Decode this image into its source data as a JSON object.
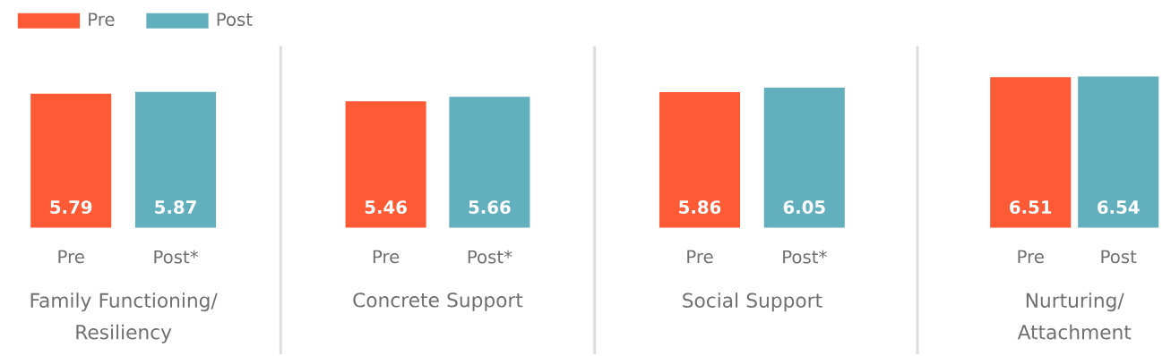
{
  "chart_data": [
    {
      "type": "bar",
      "categories": [
        "Pre",
        "Post*"
      ],
      "xlabel": "Family Functioning/ Resiliency",
      "tick_labels": "x",
      "data_labels": true,
      "legend": "top",
      "series": [
        {
          "name": "Pre",
          "color": "#ff5a36",
          "values": [
            5.79,
            null
          ]
        },
        {
          "name": "Post",
          "color": "#62b0bd",
          "values": [
            null,
            5.87
          ]
        }
      ]
    },
    {
      "type": "bar",
      "categories": [
        "Pre",
        "Post*"
      ],
      "xlabel": "Concrete Support",
      "tick_labels": "x",
      "data_labels": true,
      "series": [
        {
          "color": "#ff5a36",
          "values": [
            5.46,
            null
          ]
        },
        {
          "color": "#62b0bd",
          "values": [
            null,
            5.66
          ]
        }
      ]
    },
    {
      "type": "bar",
      "categories": [
        "Pre",
        "Post*"
      ],
      "xlabel": "Social Support",
      "tick_labels": "x",
      "data_labels": true,
      "series": [
        {
          "color": "#ff5a36",
          "values": [
            5.86,
            null
          ]
        },
        {
          "color": "#62b0bd",
          "values": [
            null,
            6.05
          ]
        }
      ]
    },
    {
      "type": "bar",
      "categories": [
        "Pre",
        "Post"
      ],
      "xlabel": "Nurturing/ Attachment",
      "tick_labels": "x",
      "data_labels": true,
      "series": [
        {
          "color": "#ff5a36",
          "values": [
            6.51,
            null
          ]
        },
        {
          "color": "#62b0bd",
          "values": [
            null,
            6.54
          ]
        }
      ]
    }
  ]
}
